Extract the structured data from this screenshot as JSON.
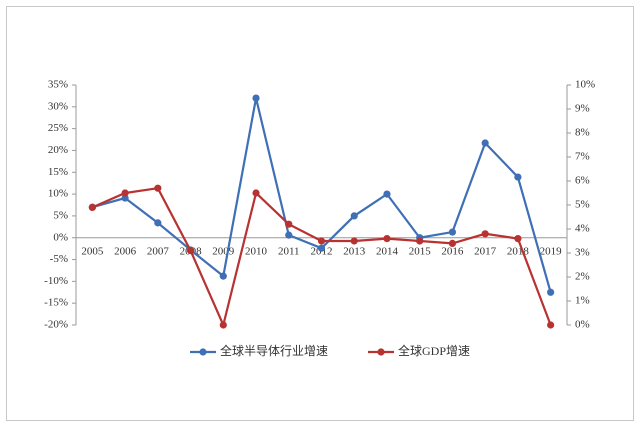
{
  "chart_data": {
    "type": "line",
    "categories": [
      "2005",
      "2006",
      "2007",
      "2008",
      "2009",
      "2010",
      "2011",
      "2012",
      "2013",
      "2014",
      "2015",
      "2016",
      "2017",
      "2018",
      "2019"
    ],
    "series": [
      {
        "name": "全球半导体行业增速",
        "color": "#3f6fb5",
        "axis": "y",
        "values": [
          7,
          9.1,
          3.4,
          -2.8,
          -8.8,
          32,
          0.6,
          -2.4,
          5,
          10,
          0,
          1.3,
          21.7,
          13.9,
          -12.5
        ]
      },
      {
        "name": "全球GDP增速",
        "color": "#b83232",
        "axis": "y2",
        "values": [
          4.9,
          5.5,
          5.7,
          3.1,
          0,
          5.5,
          4.2,
          3.5,
          3.5,
          3.6,
          3.5,
          3.4,
          3.8,
          3.6,
          0
        ]
      }
    ],
    "ylim": [
      -20,
      35
    ],
    "yticks": [
      {
        "value": -20,
        "label": "-20%"
      },
      {
        "value": -15,
        "label": "-15%"
      },
      {
        "value": -10,
        "label": "-10%"
      },
      {
        "value": -5,
        "label": "-5%"
      },
      {
        "value": 0,
        "label": "0%"
      },
      {
        "value": 5,
        "label": "5%"
      },
      {
        "value": 10,
        "label": "10%"
      },
      {
        "value": 15,
        "label": "15%"
      },
      {
        "value": 20,
        "label": "20%"
      },
      {
        "value": 25,
        "label": "25%"
      },
      {
        "value": 30,
        "label": "30%"
      },
      {
        "value": 35,
        "label": "35%"
      }
    ],
    "y2lim": [
      0,
      10
    ],
    "y2ticks": [
      {
        "value": 0,
        "label": "0%"
      },
      {
        "value": 1,
        "label": "1%"
      },
      {
        "value": 2,
        "label": "2%"
      },
      {
        "value": 3,
        "label": "3%"
      },
      {
        "value": 4,
        "label": "4%"
      },
      {
        "value": 5,
        "label": "5%"
      },
      {
        "value": 6,
        "label": "6%"
      },
      {
        "value": 7,
        "label": "7%"
      },
      {
        "value": 8,
        "label": "8%"
      },
      {
        "value": 9,
        "label": "9%"
      },
      {
        "value": 10,
        "label": "10%"
      }
    ],
    "grid": false,
    "legend": "bottom"
  }
}
